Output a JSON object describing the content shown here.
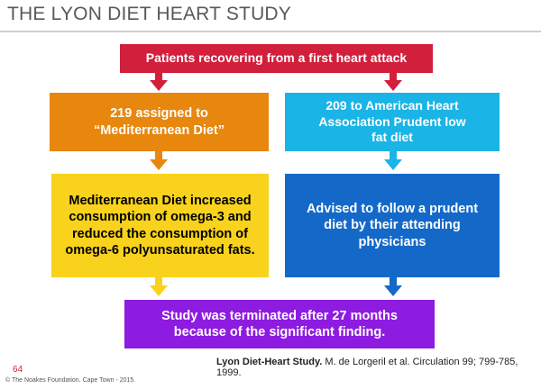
{
  "title": "THE LYON DIET HEART STUDY",
  "boxes": {
    "top": "Patients recovering from a first heart attack",
    "mediterranean_assigned": "219 assigned to “Mediterranean Diet”",
    "aha_assigned": "209 to American Heart Association Prudent low fat diet",
    "mediterranean_detail": "Mediterranean Diet increased consumption of omega-3 and reduced the consumption of omega-6 polyunsaturated fats.",
    "aha_detail": "Advised to follow a prudent diet by their attending physicians",
    "result": "Study was terminated after 27 months because of the significant finding."
  },
  "citation": {
    "title": "Lyon Diet-Heart Study.",
    "rest": " M. de Lorgeril et al.  Circulation 99; 799-785, 1999."
  },
  "slide_number": "64",
  "footer": "© The Noakes Foundation. Cape Town - 2015.",
  "colors": {
    "top": "#d21f3c",
    "mediterranean_assigned": "#e7870d",
    "aha_assigned": "#1ab4e6",
    "mediterranean_detail": "#f8d21c",
    "aha_detail": "#1469c8",
    "result": "#8e1be0"
  }
}
